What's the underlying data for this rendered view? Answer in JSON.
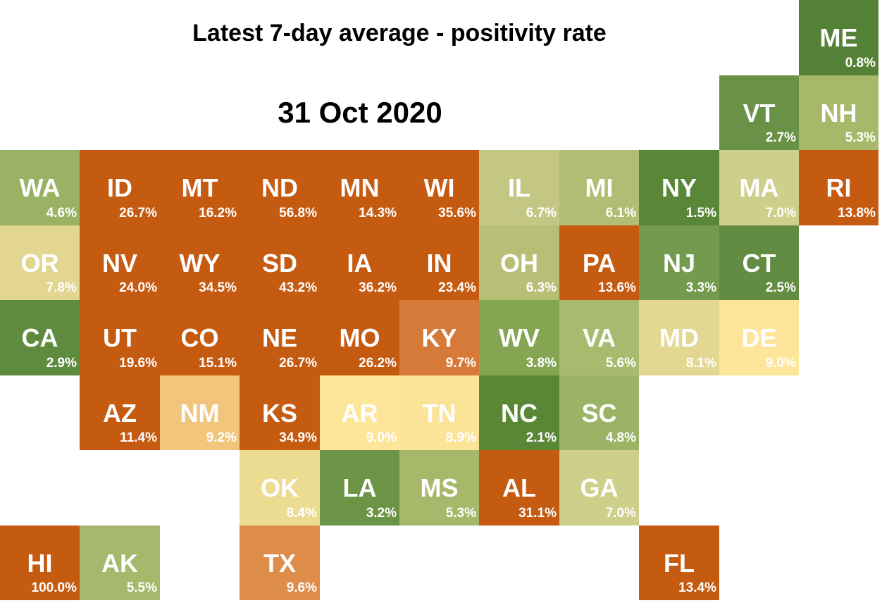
{
  "title": "Latest 7-day average - positivity rate",
  "subtitle": "31 Oct 2020",
  "chart_data": {
    "type": "heatmap",
    "title": "Latest 7-day average - positivity rate",
    "subtitle": "31 Oct 2020",
    "unit": "%",
    "states": [
      {
        "state": "ME",
        "value": "0.8%",
        "row": 0,
        "col": 10,
        "color": "#538135"
      },
      {
        "state": "VT",
        "value": "2.7%",
        "row": 1,
        "col": 9,
        "color": "#6a9247"
      },
      {
        "state": "NH",
        "value": "5.3%",
        "row": 1,
        "col": 10,
        "color": "#a7b86a"
      },
      {
        "state": "WA",
        "value": "4.6%",
        "row": 2,
        "col": 0,
        "color": "#99b264"
      },
      {
        "state": "ID",
        "value": "26.7%",
        "row": 2,
        "col": 1,
        "color": "#c55a11"
      },
      {
        "state": "MT",
        "value": "16.2%",
        "row": 2,
        "col": 2,
        "color": "#c55a11"
      },
      {
        "state": "ND",
        "value": "56.8%",
        "row": 2,
        "col": 3,
        "color": "#c55a11"
      },
      {
        "state": "MN",
        "value": "14.3%",
        "row": 2,
        "col": 4,
        "color": "#c55a11"
      },
      {
        "state": "WI",
        "value": "35.6%",
        "row": 2,
        "col": 5,
        "color": "#c55a11"
      },
      {
        "state": "IL",
        "value": "6.7%",
        "row": 2,
        "col": 6,
        "color": "#c3c783"
      },
      {
        "state": "MI",
        "value": "6.1%",
        "row": 2,
        "col": 7,
        "color": "#b2bd73"
      },
      {
        "state": "NY",
        "value": "1.5%",
        "row": 2,
        "col": 8,
        "color": "#5a8638"
      },
      {
        "state": "MA",
        "value": "7.0%",
        "row": 2,
        "col": 9,
        "color": "#cfcf8c"
      },
      {
        "state": "RI",
        "value": "13.8%",
        "row": 2,
        "col": 10,
        "color": "#c55a11"
      },
      {
        "state": "OR",
        "value": "7.8%",
        "row": 3,
        "col": 0,
        "color": "#e2d690"
      },
      {
        "state": "NV",
        "value": "24.0%",
        "row": 3,
        "col": 1,
        "color": "#c55a11"
      },
      {
        "state": "WY",
        "value": "34.5%",
        "row": 3,
        "col": 2,
        "color": "#c55a11"
      },
      {
        "state": "SD",
        "value": "43.2%",
        "row": 3,
        "col": 3,
        "color": "#c55a11"
      },
      {
        "state": "IA",
        "value": "36.2%",
        "row": 3,
        "col": 4,
        "color": "#c55a11"
      },
      {
        "state": "IN",
        "value": "23.4%",
        "row": 3,
        "col": 5,
        "color": "#c55a11"
      },
      {
        "state": "OH",
        "value": "6.3%",
        "row": 3,
        "col": 6,
        "color": "#b7bf76"
      },
      {
        "state": "PA",
        "value": "13.6%",
        "row": 3,
        "col": 7,
        "color": "#c55a11"
      },
      {
        "state": "NJ",
        "value": "3.3%",
        "row": 3,
        "col": 8,
        "color": "#739a4d"
      },
      {
        "state": "CT",
        "value": "2.5%",
        "row": 3,
        "col": 9,
        "color": "#628c41"
      },
      {
        "state": "CA",
        "value": "2.9%",
        "row": 4,
        "col": 0,
        "color": "#5f8b3f"
      },
      {
        "state": "UT",
        "value": "19.6%",
        "row": 4,
        "col": 1,
        "color": "#c55a11"
      },
      {
        "state": "CO",
        "value": "15.1%",
        "row": 4,
        "col": 2,
        "color": "#c55a11"
      },
      {
        "state": "NE",
        "value": "26.7%",
        "row": 4,
        "col": 3,
        "color": "#c55a11"
      },
      {
        "state": "MO",
        "value": "26.2%",
        "row": 4,
        "col": 4,
        "color": "#c55a11"
      },
      {
        "state": "KY",
        "value": "9.7%",
        "row": 4,
        "col": 5,
        "color": "#d67a3a"
      },
      {
        "state": "WV",
        "value": "3.8%",
        "row": 4,
        "col": 6,
        "color": "#84a653"
      },
      {
        "state": "VA",
        "value": "5.6%",
        "row": 4,
        "col": 7,
        "color": "#a8ba6e"
      },
      {
        "state": "MD",
        "value": "8.1%",
        "row": 4,
        "col": 8,
        "color": "#e3d891"
      },
      {
        "state": "DE",
        "value": "9.0%",
        "row": 4,
        "col": 9,
        "color": "#fde59a"
      },
      {
        "state": "AZ",
        "value": "11.4%",
        "row": 5,
        "col": 1,
        "color": "#c55a11"
      },
      {
        "state": "NM",
        "value": "9.2%",
        "row": 5,
        "col": 2,
        "color": "#f2c57d"
      },
      {
        "state": "KS",
        "value": "34.9%",
        "row": 5,
        "col": 3,
        "color": "#c55a11"
      },
      {
        "state": "AR",
        "value": "9.0%",
        "row": 5,
        "col": 4,
        "color": "#fde59a"
      },
      {
        "state": "TN",
        "value": "8.9%",
        "row": 5,
        "col": 5,
        "color": "#fbe398"
      },
      {
        "state": "NC",
        "value": "2.1%",
        "row": 5,
        "col": 6,
        "color": "#588836"
      },
      {
        "state": "SC",
        "value": "4.8%",
        "row": 5,
        "col": 7,
        "color": "#9bb365"
      },
      {
        "state": "OK",
        "value": "8.4%",
        "row": 6,
        "col": 3,
        "color": "#ecdc92"
      },
      {
        "state": "LA",
        "value": "3.2%",
        "row": 6,
        "col": 4,
        "color": "#6b9446"
      },
      {
        "state": "MS",
        "value": "5.3%",
        "row": 6,
        "col": 5,
        "color": "#a7b86a"
      },
      {
        "state": "AL",
        "value": "31.1%",
        "row": 6,
        "col": 6,
        "color": "#c55a11"
      },
      {
        "state": "GA",
        "value": "7.0%",
        "row": 6,
        "col": 7,
        "color": "#cfcf8c"
      },
      {
        "state": "HI",
        "value": "100.0%",
        "row": 7,
        "col": 0,
        "color": "#c55a11"
      },
      {
        "state": "AK",
        "value": "5.5%",
        "row": 7,
        "col": 1,
        "color": "#a5b86c"
      },
      {
        "state": "TX",
        "value": "9.6%",
        "row": 7,
        "col": 3,
        "color": "#de8c4a"
      },
      {
        "state": "FL",
        "value": "13.4%",
        "row": 7,
        "col": 8,
        "color": "#c55a11"
      }
    ]
  }
}
